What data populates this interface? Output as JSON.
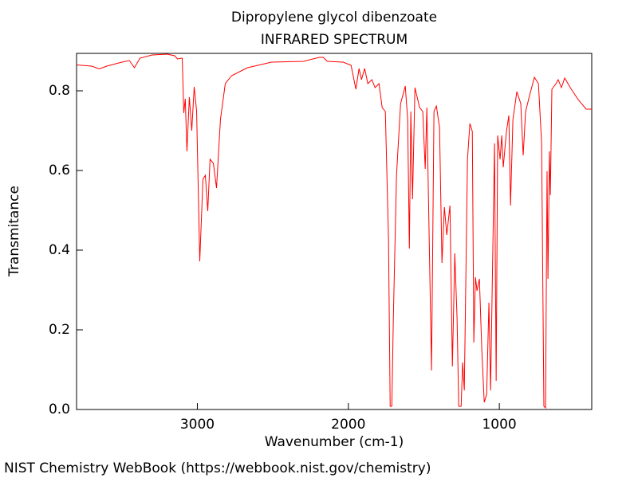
{
  "chart_data": {
    "type": "line",
    "title": "Dipropylene glycol dibenzoate",
    "subtitle": "INFRARED SPECTRUM",
    "x_label": "Wavenumber (cm-1)",
    "y_label": "Transmitance",
    "xlim": [
      3800,
      388
    ],
    "ylim": [
      0,
      0.894
    ],
    "xticks": [
      3000,
      2000,
      1000
    ],
    "yticks": [
      {
        "value": 0,
        "label": "0.0"
      },
      0.2,
      0.4,
      0.6,
      0.8
    ],
    "series": [
      {
        "name": "Dipropylene glycol dibenzoate",
        "color": "#ff0000",
        "x": [
          3800,
          3700,
          3650,
          3600,
          3500,
          3450,
          3417,
          3380,
          3300,
          3200,
          3150,
          3132,
          3100,
          3090,
          3080,
          3069,
          3053,
          3037,
          3021,
          3005,
          2984,
          2963,
          2947,
          2931,
          2916,
          2894,
          2873,
          2847,
          2815,
          2773,
          2668,
          2509,
          2298,
          2193,
          2166,
          2140,
          2034,
          1982,
          1950,
          1929,
          1913,
          1892,
          1871,
          1844,
          1823,
          1797,
          1776,
          1755,
          1734,
          1723,
          1712,
          1702,
          1681,
          1654,
          1623,
          1607,
          1596,
          1586,
          1575,
          1559,
          1528,
          1507,
          1491,
          1480,
          1449,
          1433,
          1417,
          1396,
          1380,
          1364,
          1348,
          1327,
          1311,
          1295,
          1280,
          1269,
          1253,
          1243,
          1232,
          1211,
          1195,
          1179,
          1169,
          1158,
          1148,
          1132,
          1116,
          1100,
          1084,
          1069,
          1058,
          1042,
          1032,
          1021,
          1011,
          995,
          984,
          974,
          953,
          937,
          926,
          910,
          884,
          858,
          842,
          826,
          800,
          768,
          741,
          720,
          705,
          694,
          684,
          678,
          668,
          662,
          652,
          625,
          610,
          589,
          567,
          530,
          478,
          425,
          388
        ],
        "values": [
          0.865,
          0.862,
          0.855,
          0.862,
          0.872,
          0.876,
          0.858,
          0.882,
          0.89,
          0.892,
          0.888,
          0.88,
          0.882,
          0.744,
          0.78,
          0.648,
          0.784,
          0.7,
          0.81,
          0.75,
          0.372,
          0.578,
          0.588,
          0.498,
          0.628,
          0.618,
          0.556,
          0.728,
          0.818,
          0.838,
          0.858,
          0.872,
          0.874,
          0.884,
          0.884,
          0.874,
          0.872,
          0.864,
          0.804,
          0.856,
          0.828,
          0.856,
          0.818,
          0.828,
          0.808,
          0.818,
          0.758,
          0.748,
          0.428,
          0.008,
          0.008,
          0.228,
          0.588,
          0.768,
          0.812,
          0.728,
          0.404,
          0.748,
          0.528,
          0.808,
          0.758,
          0.748,
          0.604,
          0.758,
          0.098,
          0.748,
          0.762,
          0.708,
          0.368,
          0.508,
          0.438,
          0.512,
          0.108,
          0.392,
          0.228,
          0.008,
          0.008,
          0.118,
          0.048,
          0.628,
          0.718,
          0.698,
          0.168,
          0.332,
          0.298,
          0.328,
          0.148,
          0.018,
          0.038,
          0.268,
          0.048,
          0.428,
          0.668,
          0.072,
          0.688,
          0.628,
          0.688,
          0.608,
          0.698,
          0.738,
          0.512,
          0.728,
          0.798,
          0.768,
          0.638,
          0.748,
          0.788,
          0.834,
          0.818,
          0.668,
          0.008,
          0.004,
          0.598,
          0.328,
          0.648,
          0.538,
          0.804,
          0.818,
          0.828,
          0.808,
          0.832,
          0.808,
          0.778,
          0.754,
          0.754
        ]
      }
    ]
  },
  "footer": "NIST Chemistry WebBook (https://webbook.nist.gov/chemistry)"
}
